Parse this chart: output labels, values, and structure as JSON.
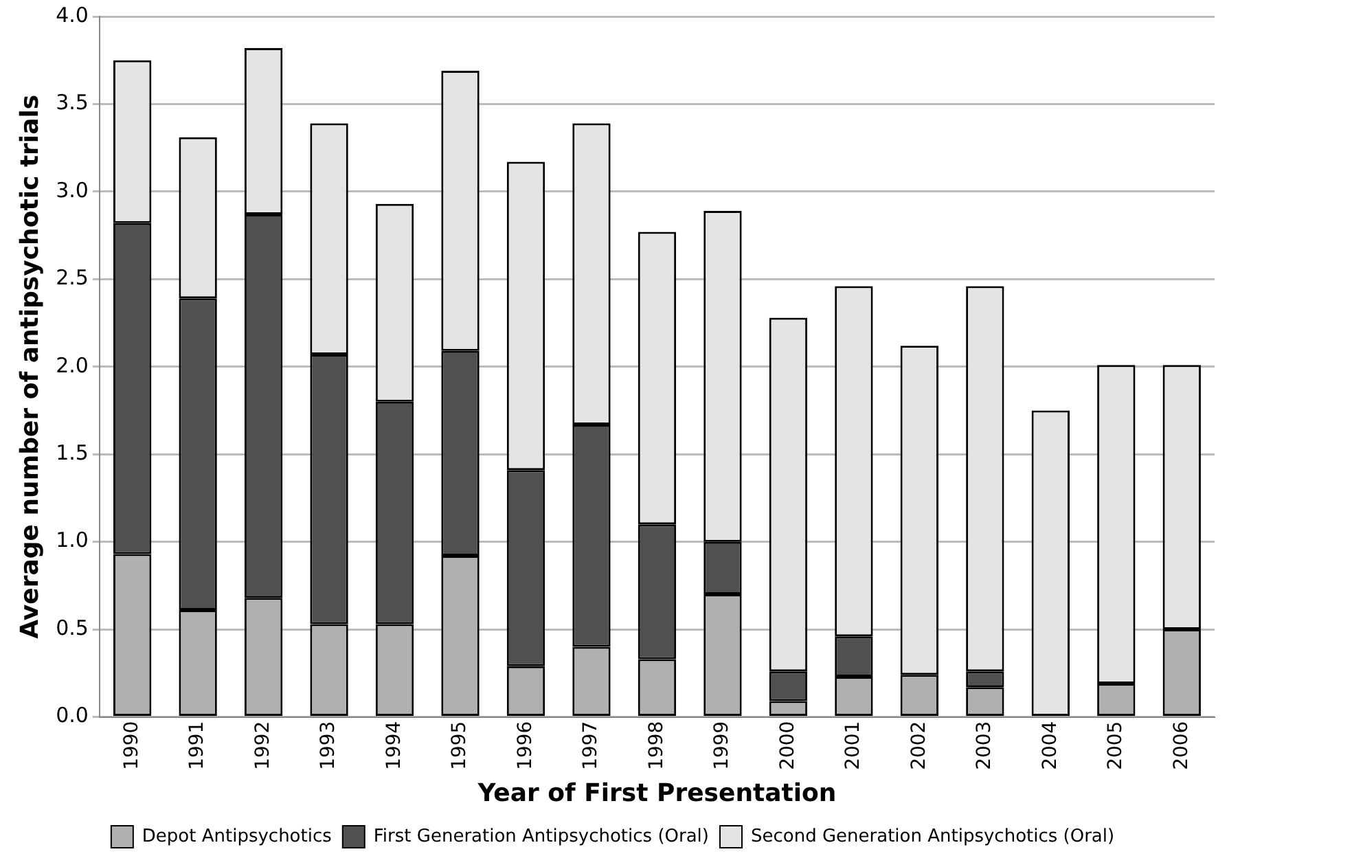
{
  "chart_data": {
    "type": "bar",
    "stacked": true,
    "xlabel": "Year of First Presentation",
    "ylabel": "Average number of antipsychotic trials",
    "categories": [
      "1990",
      "1991",
      "1992",
      "1993",
      "1994",
      "1995",
      "1996",
      "1997",
      "1998",
      "1999",
      "2000",
      "2001",
      "2002",
      "2003",
      "2004",
      "2005",
      "2006"
    ],
    "series": [
      {
        "name": "Depot Antipsychotics",
        "color": "#b0b0b0",
        "values": [
          0.93,
          0.61,
          0.68,
          0.53,
          0.53,
          0.92,
          0.29,
          0.4,
          0.33,
          0.7,
          0.09,
          0.23,
          0.24,
          0.17,
          0,
          0.19,
          0.5
        ]
      },
      {
        "name": "First Generation Antipsychotics (Oral)",
        "color": "#505050",
        "values": [
          1.89,
          1.78,
          2.19,
          1.54,
          1.27,
          1.17,
          1.12,
          1.27,
          0.77,
          0.3,
          0.17,
          0.23,
          0,
          0.09,
          0,
          0,
          0
        ]
      },
      {
        "name": "Second Generation Antipsychotics (Oral)",
        "color": "#e4e4e4",
        "values": [
          0.93,
          0.92,
          0.95,
          1.32,
          1.13,
          1.6,
          1.76,
          1.72,
          1.67,
          1.89,
          2.02,
          2.0,
          1.88,
          2.2,
          1.75,
          1.82,
          1.51
        ]
      }
    ],
    "ylim": [
      0,
      4
    ],
    "yticks": [
      {
        "value": 0,
        "label": "0.0"
      },
      {
        "value": 0.5,
        "label": "0.5"
      },
      {
        "value": 1,
        "label": "1.0"
      },
      {
        "value": 1.5,
        "label": "1.5"
      },
      {
        "value": 2,
        "label": "2.0"
      },
      {
        "value": 2.5,
        "label": "2.5"
      },
      {
        "value": 3,
        "label": "3.0"
      },
      {
        "value": 3.5,
        "label": "3.5"
      },
      {
        "value": 4,
        "label": "4.0"
      }
    ],
    "grid": "y",
    "legend": "bottom"
  }
}
